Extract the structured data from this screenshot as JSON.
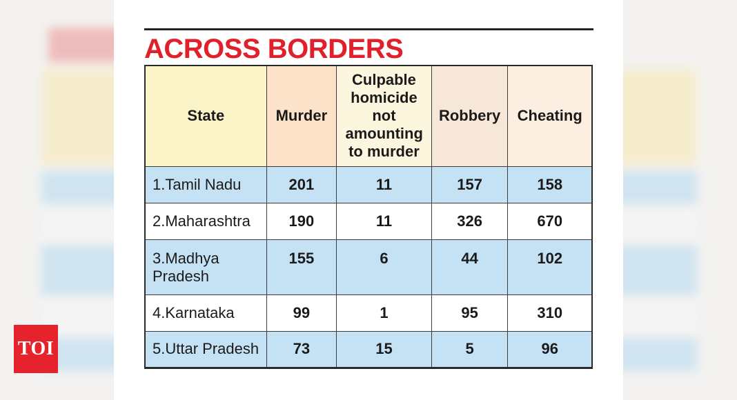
{
  "chart_data": {
    "type": "table",
    "title": "ACROSS BORDERS",
    "columns": [
      "State",
      "Murder",
      "Culpable homicide not amounting to murder",
      "Robbery",
      "Cheating"
    ],
    "rows": [
      {
        "state": "1.Tamil Nadu",
        "murder": "201",
        "culpable_homicide": "11",
        "robbery": "157",
        "cheating": "158"
      },
      {
        "state": "2.Maharashtra",
        "murder": "190",
        "culpable_homicide": "11",
        "robbery": "326",
        "cheating": "670"
      },
      {
        "state": "3.Madhya Pradesh",
        "murder": "155",
        "culpable_homicide": "6",
        "robbery": "44",
        "cheating": "102"
      },
      {
        "state": "4.Karnataka",
        "murder": "99",
        "culpable_homicide": "1",
        "robbery": "95",
        "cheating": "310"
      },
      {
        "state": "5.Uttar Pradesh",
        "murder": "73",
        "culpable_homicide": "15",
        "robbery": "5",
        "cheating": "96"
      }
    ]
  },
  "logo": {
    "text": "TOI"
  },
  "colors": {
    "title_red": "#e0202a",
    "row_blue": "#c5e2f4",
    "logo_red": "#e6232d"
  }
}
